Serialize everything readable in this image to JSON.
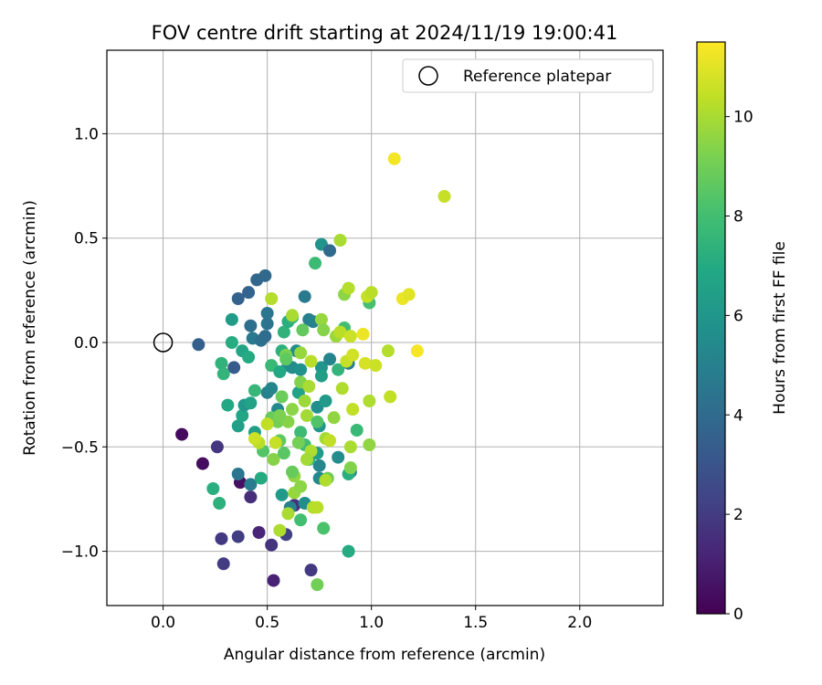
{
  "chart_data": {
    "type": "scatter",
    "title": "FOV centre drift starting at 2024/11/19 19:00:41",
    "xlabel": "Angular distance from reference (arcmin)",
    "ylabel": "Rotation from reference (arcmin)",
    "xlim": [
      -0.27,
      2.4
    ],
    "ylim": [
      -1.26,
      1.4
    ],
    "xticks": [
      0.0,
      0.5,
      1.0,
      1.5,
      2.0
    ],
    "xtick_labels": [
      "0.0",
      "0.5",
      "1.0",
      "1.5",
      "2.0"
    ],
    "yticks": [
      -1.0,
      -0.5,
      0.0,
      0.5,
      1.0
    ],
    "ytick_labels": [
      "−1.0",
      "−0.5",
      "0.0",
      "0.5",
      "1.0"
    ],
    "grid": true,
    "legend": {
      "placement": "top-right",
      "entries": [
        "Reference platepar"
      ]
    },
    "reference_point": {
      "x": 0.0,
      "y": 0.0,
      "label": "Reference platepar"
    },
    "colorbar": {
      "label": "Hours from first FF file",
      "colormap": "viridis",
      "range": [
        0,
        11.5
      ],
      "ticks": [
        0,
        2,
        4,
        6,
        8,
        10
      ],
      "tick_labels": [
        "0",
        "2",
        "4",
        "6",
        "8",
        "10"
      ]
    },
    "points": [
      {
        "x": 0.09,
        "y": -0.44,
        "h": 0.3
      },
      {
        "x": 0.19,
        "y": -0.58,
        "h": 0.4
      },
      {
        "x": 0.26,
        "y": -0.5,
        "h": 1.8
      },
      {
        "x": 0.28,
        "y": -0.94,
        "h": 1.9
      },
      {
        "x": 0.29,
        "y": -1.06,
        "h": 2.0
      },
      {
        "x": 0.36,
        "y": -0.93,
        "h": 2.1
      },
      {
        "x": 0.37,
        "y": -0.67,
        "h": 0.5
      },
      {
        "x": 0.42,
        "y": -0.74,
        "h": 1.5
      },
      {
        "x": 0.46,
        "y": -0.91,
        "h": 1.2
      },
      {
        "x": 0.52,
        "y": -0.97,
        "h": 1.7
      },
      {
        "x": 0.53,
        "y": -1.14,
        "h": 1.1
      },
      {
        "x": 0.59,
        "y": -0.92,
        "h": 2.2
      },
      {
        "x": 0.71,
        "y": -1.09,
        "h": 1.9
      },
      {
        "x": 0.63,
        "y": -0.78,
        "h": 1.6
      },
      {
        "x": 0.17,
        "y": -0.01,
        "h": 3.5
      },
      {
        "x": 0.36,
        "y": 0.21,
        "h": 3.6
      },
      {
        "x": 0.41,
        "y": 0.24,
        "h": 3.7
      },
      {
        "x": 0.45,
        "y": 0.3,
        "h": 3.8
      },
      {
        "x": 0.49,
        "y": 0.32,
        "h": 3.9
      },
      {
        "x": 0.34,
        "y": -0.12,
        "h": 3.3
      },
      {
        "x": 0.36,
        "y": -0.63,
        "h": 4.5
      },
      {
        "x": 0.42,
        "y": -0.68,
        "h": 4.8
      },
      {
        "x": 0.42,
        "y": 0.08,
        "h": 4.2
      },
      {
        "x": 0.43,
        "y": 0.02,
        "h": 4.6
      },
      {
        "x": 0.47,
        "y": 0.01,
        "h": 4.3
      },
      {
        "x": 0.49,
        "y": 0.03,
        "h": 4.1
      },
      {
        "x": 0.5,
        "y": 0.09,
        "h": 4.4
      },
      {
        "x": 0.5,
        "y": 0.14,
        "h": 4.5
      },
      {
        "x": 0.5,
        "y": -0.24,
        "h": 5.0
      },
      {
        "x": 0.52,
        "y": -0.22,
        "h": 5.2
      },
      {
        "x": 0.55,
        "y": -0.32,
        "h": 5.4
      },
      {
        "x": 0.6,
        "y": -0.11,
        "h": 5.3
      },
      {
        "x": 0.62,
        "y": -0.12,
        "h": 5.5
      },
      {
        "x": 0.64,
        "y": -0.04,
        "h": 5.6
      },
      {
        "x": 0.66,
        "y": -0.13,
        "h": 5.8
      },
      {
        "x": 0.68,
        "y": 0.22,
        "h": 4.7
      },
      {
        "x": 0.7,
        "y": 0.11,
        "h": 4.9
      },
      {
        "x": 0.72,
        "y": 0.1,
        "h": 5.1
      },
      {
        "x": 0.74,
        "y": -0.31,
        "h": 5.7
      },
      {
        "x": 0.76,
        "y": 0.47,
        "h": 5.9
      },
      {
        "x": 0.8,
        "y": 0.44,
        "h": 4.0
      },
      {
        "x": 0.76,
        "y": -0.12,
        "h": 5.9
      },
      {
        "x": 0.78,
        "y": -0.28,
        "h": 6.2
      },
      {
        "x": 0.8,
        "y": -0.08,
        "h": 5.2
      },
      {
        "x": 0.84,
        "y": -0.55,
        "h": 5.5
      },
      {
        "x": 0.89,
        "y": -0.1,
        "h": 4.8
      },
      {
        "x": 0.9,
        "y": -0.62,
        "h": 5.0
      },
      {
        "x": 0.75,
        "y": -0.59,
        "h": 5.3
      },
      {
        "x": 0.75,
        "y": -0.65,
        "h": 5.4
      },
      {
        "x": 0.68,
        "y": -0.77,
        "h": 5.6
      },
      {
        "x": 0.61,
        "y": -0.79,
        "h": 5.1
      },
      {
        "x": 0.36,
        "y": -0.4,
        "h": 6.5
      },
      {
        "x": 0.38,
        "y": -0.35,
        "h": 6.8
      },
      {
        "x": 0.39,
        "y": -0.3,
        "h": 6.1
      },
      {
        "x": 0.42,
        "y": -0.29,
        "h": 6.6
      },
      {
        "x": 0.44,
        "y": -0.43,
        "h": 6.4
      },
      {
        "x": 0.47,
        "y": -0.65,
        "h": 7.0
      },
      {
        "x": 0.24,
        "y": -0.7,
        "h": 7.2
      },
      {
        "x": 0.27,
        "y": -0.77,
        "h": 7.3
      },
      {
        "x": 0.28,
        "y": -0.1,
        "h": 7.4
      },
      {
        "x": 0.29,
        "y": -0.15,
        "h": 7.5
      },
      {
        "x": 0.31,
        "y": -0.3,
        "h": 6.9
      },
      {
        "x": 0.33,
        "y": 0.0,
        "h": 7.1
      },
      {
        "x": 0.33,
        "y": 0.11,
        "h": 6.3
      },
      {
        "x": 0.38,
        "y": -0.04,
        "h": 6.7
      },
      {
        "x": 0.41,
        "y": -0.07,
        "h": 7.0
      },
      {
        "x": 0.44,
        "y": -0.23,
        "h": 7.6
      },
      {
        "x": 0.52,
        "y": -0.11,
        "h": 7.7
      },
      {
        "x": 0.56,
        "y": -0.14,
        "h": 6.9
      },
      {
        "x": 0.57,
        "y": -0.04,
        "h": 7.3
      },
      {
        "x": 0.58,
        "y": 0.05,
        "h": 7.4
      },
      {
        "x": 0.6,
        "y": 0.1,
        "h": 7.2
      },
      {
        "x": 0.62,
        "y": 0.12,
        "h": 7.5
      },
      {
        "x": 0.65,
        "y": -0.24,
        "h": 6.6
      },
      {
        "x": 0.66,
        "y": -0.43,
        "h": 7.8
      },
      {
        "x": 0.68,
        "y": -0.49,
        "h": 7.9
      },
      {
        "x": 0.7,
        "y": -0.56,
        "h": 7.6
      },
      {
        "x": 0.73,
        "y": 0.38,
        "h": 7.8
      },
      {
        "x": 0.74,
        "y": -0.53,
        "h": 6.3
      },
      {
        "x": 0.75,
        "y": -0.4,
        "h": 6.0
      },
      {
        "x": 0.76,
        "y": -0.16,
        "h": 6.4
      },
      {
        "x": 0.84,
        "y": -0.13,
        "h": 7.5
      },
      {
        "x": 0.87,
        "y": 0.07,
        "h": 8.0
      },
      {
        "x": 0.89,
        "y": -0.63,
        "h": 7.2
      },
      {
        "x": 0.89,
        "y": -1.0,
        "h": 7.0
      },
      {
        "x": 0.93,
        "y": -0.42,
        "h": 7.7
      },
      {
        "x": 0.99,
        "y": 0.19,
        "h": 8.1
      },
      {
        "x": 0.66,
        "y": -0.85,
        "h": 8.0
      },
      {
        "x": 0.77,
        "y": -0.89,
        "h": 8.2
      },
      {
        "x": 0.57,
        "y": -0.73,
        "h": 6.2
      },
      {
        "x": 0.48,
        "y": -0.52,
        "h": 8.4
      },
      {
        "x": 0.52,
        "y": -0.36,
        "h": 8.8
      },
      {
        "x": 0.55,
        "y": -0.38,
        "h": 9.0
      },
      {
        "x": 0.56,
        "y": -0.47,
        "h": 8.6
      },
      {
        "x": 0.57,
        "y": -0.26,
        "h": 8.9
      },
      {
        "x": 0.58,
        "y": -0.53,
        "h": 8.5
      },
      {
        "x": 0.59,
        "y": -0.06,
        "h": 9.2
      },
      {
        "x": 0.6,
        "y": -0.38,
        "h": 9.4
      },
      {
        "x": 0.62,
        "y": -0.32,
        "h": 9.5
      },
      {
        "x": 0.63,
        "y": -0.64,
        "h": 9.6
      },
      {
        "x": 0.63,
        "y": -0.72,
        "h": 9.7
      },
      {
        "x": 0.65,
        "y": -0.48,
        "h": 9.1
      },
      {
        "x": 0.66,
        "y": -0.19,
        "h": 9.3
      },
      {
        "x": 0.67,
        "y": 0.06,
        "h": 8.7
      },
      {
        "x": 0.68,
        "y": -0.28,
        "h": 9.8
      },
      {
        "x": 0.69,
        "y": -0.35,
        "h": 9.9
      },
      {
        "x": 0.7,
        "y": -0.21,
        "h": 10.0
      },
      {
        "x": 0.71,
        "y": -0.52,
        "h": 10.1
      },
      {
        "x": 0.72,
        "y": -0.79,
        "h": 10.2
      },
      {
        "x": 0.74,
        "y": -0.79,
        "h": 10.3
      },
      {
        "x": 0.74,
        "y": -0.38,
        "h": 8.3
      },
      {
        "x": 0.74,
        "y": -1.16,
        "h": 9.0
      },
      {
        "x": 0.76,
        "y": 0.11,
        "h": 9.7
      },
      {
        "x": 0.77,
        "y": 0.06,
        "h": 9.4
      },
      {
        "x": 0.78,
        "y": -0.46,
        "h": 9.9
      },
      {
        "x": 0.79,
        "y": -0.65,
        "h": 8.9
      },
      {
        "x": 0.8,
        "y": -0.47,
        "h": 10.4
      },
      {
        "x": 0.82,
        "y": -0.36,
        "h": 9.6
      },
      {
        "x": 0.83,
        "y": 0.03,
        "h": 9.8
      },
      {
        "x": 0.85,
        "y": 0.49,
        "h": 10.0
      },
      {
        "x": 0.85,
        "y": 0.05,
        "h": 10.3
      },
      {
        "x": 0.86,
        "y": -0.22,
        "h": 10.1
      },
      {
        "x": 0.87,
        "y": 0.23,
        "h": 9.5
      },
      {
        "x": 0.88,
        "y": -0.09,
        "h": 10.5
      },
      {
        "x": 0.89,
        "y": 0.26,
        "h": 10.2
      },
      {
        "x": 0.9,
        "y": 0.03,
        "h": 10.6
      },
      {
        "x": 0.9,
        "y": -0.5,
        "h": 10.0
      },
      {
        "x": 0.9,
        "y": -0.6,
        "h": 9.3
      },
      {
        "x": 0.91,
        "y": -0.32,
        "h": 10.4
      },
      {
        "x": 0.91,
        "y": -0.06,
        "h": 10.7
      },
      {
        "x": 0.96,
        "y": 0.04,
        "h": 11.2
      },
      {
        "x": 0.97,
        "y": -0.1,
        "h": 10.8
      },
      {
        "x": 0.98,
        "y": 0.22,
        "h": 10.5
      },
      {
        "x": 0.99,
        "y": -0.28,
        "h": 10.1
      },
      {
        "x": 0.99,
        "y": -0.49,
        "h": 9.6
      },
      {
        "x": 1.0,
        "y": 0.24,
        "h": 10.3
      },
      {
        "x": 1.02,
        "y": -0.11,
        "h": 10.6
      },
      {
        "x": 1.08,
        "y": -0.04,
        "h": 10.2
      },
      {
        "x": 1.09,
        "y": -0.26,
        "h": 10.4
      },
      {
        "x": 1.11,
        "y": 0.88,
        "h": 11.3
      },
      {
        "x": 1.15,
        "y": 0.21,
        "h": 11.2
      },
      {
        "x": 1.18,
        "y": 0.23,
        "h": 11.0
      },
      {
        "x": 1.22,
        "y": -0.04,
        "h": 11.4
      },
      {
        "x": 1.35,
        "y": 0.7,
        "h": 10.5
      },
      {
        "x": 0.6,
        "y": -0.82,
        "h": 10.0
      },
      {
        "x": 0.56,
        "y": -0.9,
        "h": 10.1
      },
      {
        "x": 0.46,
        "y": -0.48,
        "h": 10.3
      },
      {
        "x": 0.44,
        "y": -0.46,
        "h": 10.6
      },
      {
        "x": 0.5,
        "y": -0.39,
        "h": 10.4
      },
      {
        "x": 0.53,
        "y": -0.56,
        "h": 9.4
      },
      {
        "x": 0.52,
        "y": 0.21,
        "h": 10.2
      },
      {
        "x": 0.56,
        "y": -0.35,
        "h": 9.2
      },
      {
        "x": 0.59,
        "y": -0.08,
        "h": 8.6
      },
      {
        "x": 0.62,
        "y": 0.13,
        "h": 10.0
      },
      {
        "x": 0.66,
        "y": -0.05,
        "h": 9.7
      },
      {
        "x": 0.69,
        "y": -0.56,
        "h": 9.9
      },
      {
        "x": 0.71,
        "y": -0.09,
        "h": 10.3
      },
      {
        "x": 0.78,
        "y": -0.66,
        "h": 10.1
      },
      {
        "x": 0.54,
        "y": -0.48,
        "h": 10.5
      },
      {
        "x": 0.62,
        "y": -0.62,
        "h": 8.8
      },
      {
        "x": 0.66,
        "y": -0.69,
        "h": 9.5
      }
    ]
  }
}
